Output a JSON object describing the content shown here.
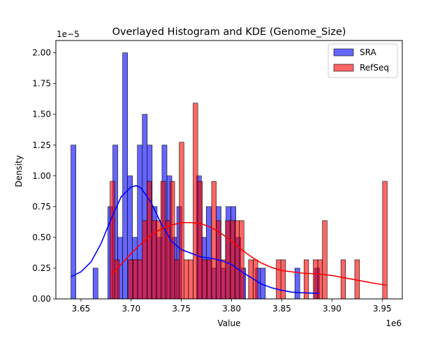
{
  "chart_data": {
    "type": "histogram",
    "title": "Overlayed Histogram and KDE (Genome_Size)",
    "xlabel": "Value",
    "ylabel": "Density",
    "x_offset_label": "1e6",
    "y_offset_label": "1e−5",
    "xlim": [
      3.625,
      3.97
    ],
    "ylim": [
      0,
      2.1
    ],
    "x_ticks": [
      {
        "value": 3.65,
        "label": "3.65"
      },
      {
        "value": 3.7,
        "label": "3.70"
      },
      {
        "value": 3.75,
        "label": "3.75"
      },
      {
        "value": 3.8,
        "label": "3.80"
      },
      {
        "value": 3.85,
        "label": "3.85"
      },
      {
        "value": 3.9,
        "label": "3.90"
      },
      {
        "value": 3.95,
        "label": "3.95"
      }
    ],
    "y_ticks": [
      {
        "value": 0.0,
        "label": "0.00"
      },
      {
        "value": 0.25,
        "label": "0.25"
      },
      {
        "value": 0.5,
        "label": "0.50"
      },
      {
        "value": 0.75,
        "label": "0.75"
      },
      {
        "value": 1.0,
        "label": "1.00"
      },
      {
        "value": 1.25,
        "label": "1.25"
      },
      {
        "value": 1.5,
        "label": "1.50"
      },
      {
        "value": 1.75,
        "label": "1.75"
      },
      {
        "value": 2.0,
        "label": "2.00"
      }
    ],
    "legend": {
      "placement": "upper right",
      "entries": [
        {
          "name": "SRA",
          "color": "#0000ff"
        },
        {
          "name": "RefSeq",
          "color": "#ff0000"
        }
      ]
    },
    "series": [
      {
        "name": "SRA",
        "color": "#0000ff",
        "fill_alpha": 0.6,
        "bins": [
          {
            "x0": 3.64,
            "x1": 3.6449,
            "density": 1.25
          },
          {
            "x0": 3.662,
            "x1": 3.6669,
            "density": 0.25
          },
          {
            "x0": 3.6768,
            "x1": 3.6817,
            "density": 0.75
          },
          {
            "x0": 3.6817,
            "x1": 3.6866,
            "density": 1.25
          },
          {
            "x0": 3.6866,
            "x1": 3.6915,
            "density": 0.5
          },
          {
            "x0": 3.6915,
            "x1": 3.6964,
            "density": 2.0
          },
          {
            "x0": 3.6964,
            "x1": 3.7013,
            "density": 1.0
          },
          {
            "x0": 3.7013,
            "x1": 3.7062,
            "density": 0.5
          },
          {
            "x0": 3.7062,
            "x1": 3.7111,
            "density": 1.25
          },
          {
            "x0": 3.7111,
            "x1": 3.716,
            "density": 1.5
          },
          {
            "x0": 3.716,
            "x1": 3.7209,
            "density": 1.25
          },
          {
            "x0": 3.7209,
            "x1": 3.7258,
            "density": 0.75
          },
          {
            "x0": 3.7258,
            "x1": 3.7307,
            "density": 0.5
          },
          {
            "x0": 3.7307,
            "x1": 3.7356,
            "density": 1.25
          },
          {
            "x0": 3.7356,
            "x1": 3.7405,
            "density": 1.0
          },
          {
            "x0": 3.7405,
            "x1": 3.7454,
            "density": 0.5
          },
          {
            "x0": 3.7454,
            "x1": 3.7503,
            "density": 0.75
          },
          {
            "x0": 3.765,
            "x1": 3.7699,
            "density": 1.0
          },
          {
            "x0": 3.7699,
            "x1": 3.7748,
            "density": 0.5
          },
          {
            "x0": 3.7748,
            "x1": 3.7797,
            "density": 0.75
          },
          {
            "x0": 3.7797,
            "x1": 3.7846,
            "density": 0.25
          },
          {
            "x0": 3.7846,
            "x1": 3.7895,
            "density": 0.75
          },
          {
            "x0": 3.7895,
            "x1": 3.7944,
            "density": 0.25
          },
          {
            "x0": 3.7944,
            "x1": 3.7993,
            "density": 0.75
          },
          {
            "x0": 3.7993,
            "x1": 3.8042,
            "density": 0.75
          },
          {
            "x0": 3.8042,
            "x1": 3.8091,
            "density": 0.5
          },
          {
            "x0": 3.8091,
            "x1": 3.814,
            "density": 0.25
          },
          {
            "x0": 3.8238,
            "x1": 3.8287,
            "density": 0.25
          },
          {
            "x0": 3.8287,
            "x1": 3.8336,
            "density": 0.25
          },
          {
            "x0": 3.863,
            "x1": 3.8679,
            "density": 0.25
          },
          {
            "x0": 3.8826,
            "x1": 3.8875,
            "density": 0.25
          }
        ],
        "kde": {
          "x": [
            3.64,
            3.65,
            3.66,
            3.67,
            3.68,
            3.69,
            3.7,
            3.705,
            3.71,
            3.72,
            3.73,
            3.74,
            3.75,
            3.76,
            3.77,
            3.78,
            3.79,
            3.8,
            3.81,
            3.82,
            3.83,
            3.84,
            3.85,
            3.86,
            3.87,
            3.887
          ],
          "y": [
            0.18,
            0.22,
            0.3,
            0.45,
            0.65,
            0.83,
            0.91,
            0.92,
            0.9,
            0.78,
            0.61,
            0.47,
            0.4,
            0.37,
            0.34,
            0.33,
            0.31,
            0.28,
            0.22,
            0.17,
            0.12,
            0.09,
            0.07,
            0.055,
            0.05,
            0.045
          ]
        }
      },
      {
        "name": "RefSeq",
        "color": "#ff0000",
        "fill_alpha": 0.6,
        "bins": [
          {
            "x0": 3.679,
            "x1": 3.6836,
            "density": 0.955
          },
          {
            "x0": 3.6836,
            "x1": 3.6882,
            "density": 0.318
          },
          {
            "x0": 3.6973,
            "x1": 3.7019,
            "density": 0.318
          },
          {
            "x0": 3.7019,
            "x1": 3.7065,
            "density": 0.318
          },
          {
            "x0": 3.7065,
            "x1": 3.7111,
            "density": 0.318
          },
          {
            "x0": 3.7111,
            "x1": 3.7157,
            "density": 0.636
          },
          {
            "x0": 3.7157,
            "x1": 3.7203,
            "density": 0.955
          },
          {
            "x0": 3.7203,
            "x1": 3.7249,
            "density": 0.636
          },
          {
            "x0": 3.7249,
            "x1": 3.7295,
            "density": 0.636
          },
          {
            "x0": 3.7295,
            "x1": 3.7341,
            "density": 0.955
          },
          {
            "x0": 3.7341,
            "x1": 3.7387,
            "density": 0.636
          },
          {
            "x0": 3.7387,
            "x1": 3.7433,
            "density": 0.955
          },
          {
            "x0": 3.7433,
            "x1": 3.7479,
            "density": 0.318
          },
          {
            "x0": 3.7479,
            "x1": 3.7525,
            "density": 1.273
          },
          {
            "x0": 3.7525,
            "x1": 3.7571,
            "density": 0.318
          },
          {
            "x0": 3.7571,
            "x1": 3.7617,
            "density": 0.318
          },
          {
            "x0": 3.7617,
            "x1": 3.7663,
            "density": 1.591
          },
          {
            "x0": 3.7663,
            "x1": 3.7709,
            "density": 0.955
          },
          {
            "x0": 3.7709,
            "x1": 3.7755,
            "density": 0.318
          },
          {
            "x0": 3.7755,
            "x1": 3.7801,
            "density": 0.318
          },
          {
            "x0": 3.7801,
            "x1": 3.7847,
            "density": 0.955
          },
          {
            "x0": 3.7847,
            "x1": 3.7893,
            "density": 0.636
          },
          {
            "x0": 3.7893,
            "x1": 3.7939,
            "density": 0.318
          },
          {
            "x0": 3.7939,
            "x1": 3.7985,
            "density": 0.636
          },
          {
            "x0": 3.7985,
            "x1": 3.8031,
            "density": 0.636
          },
          {
            "x0": 3.8031,
            "x1": 3.8077,
            "density": 0.636
          },
          {
            "x0": 3.8077,
            "x1": 3.8123,
            "density": 0.636
          },
          {
            "x0": 3.8169,
            "x1": 3.8215,
            "density": 0.318
          },
          {
            "x0": 3.8215,
            "x1": 3.8261,
            "density": 0.318
          },
          {
            "x0": 3.8445,
            "x1": 3.8491,
            "density": 0.318
          },
          {
            "x0": 3.8491,
            "x1": 3.8537,
            "density": 0.318
          },
          {
            "x0": 3.8721,
            "x1": 3.8767,
            "density": 0.318
          },
          {
            "x0": 3.8813,
            "x1": 3.8859,
            "density": 0.318
          },
          {
            "x0": 3.8859,
            "x1": 3.8905,
            "density": 0.318
          },
          {
            "x0": 3.8905,
            "x1": 3.8951,
            "density": 0.636
          },
          {
            "x0": 3.9089,
            "x1": 3.9135,
            "density": 0.318
          },
          {
            "x0": 3.9227,
            "x1": 3.9273,
            "density": 0.318
          },
          {
            "x0": 3.9504,
            "x1": 3.955,
            "density": 0.955
          }
        ],
        "kde": {
          "x": [
            3.68,
            3.69,
            3.7,
            3.71,
            3.72,
            3.73,
            3.74,
            3.75,
            3.76,
            3.77,
            3.78,
            3.79,
            3.8,
            3.81,
            3.82,
            3.83,
            3.84,
            3.85,
            3.86,
            3.87,
            3.88,
            3.89,
            3.9,
            3.91,
            3.92,
            3.93,
            3.94,
            3.955
          ],
          "y": [
            0.2,
            0.28,
            0.37,
            0.45,
            0.52,
            0.57,
            0.6,
            0.62,
            0.62,
            0.61,
            0.58,
            0.53,
            0.47,
            0.4,
            0.34,
            0.29,
            0.255,
            0.23,
            0.22,
            0.21,
            0.205,
            0.2,
            0.19,
            0.175,
            0.16,
            0.145,
            0.13,
            0.11
          ]
        }
      }
    ]
  }
}
